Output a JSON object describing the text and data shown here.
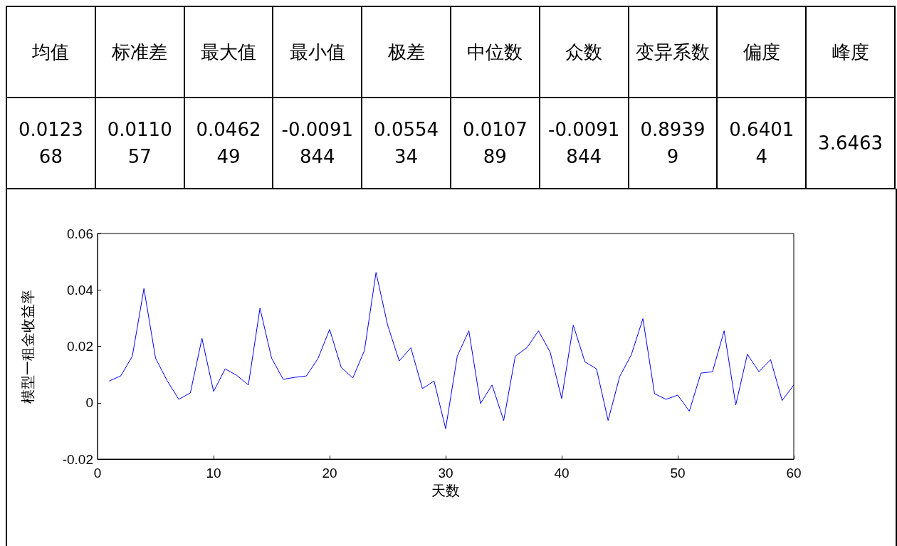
{
  "chart_data": [
    {
      "type": "other",
      "annotations": [
        "均值",
        "标准差",
        "最大值",
        "最小值",
        "极差",
        "中位数",
        "众数",
        "变异系数",
        "偏度",
        "峰度",
        "0.012368",
        "0.011057",
        "0.046249",
        "-0.0091844",
        "0.055434",
        "0.010789",
        "-0.0091844",
        "0.89399",
        "0.64014",
        "3.6463"
      ]
    },
    {
      "type": "line",
      "xlabel": "天数",
      "ylabel": "模型一租金收益率",
      "x": [
        1,
        2,
        3,
        4,
        5,
        6,
        7,
        8,
        9,
        10,
        11,
        12,
        13,
        14,
        15,
        16,
        17,
        18,
        19,
        20,
        21,
        22,
        23,
        24,
        25,
        26,
        27,
        28,
        29,
        30,
        31,
        32,
        33,
        34,
        35,
        36,
        37,
        38,
        39,
        40,
        41,
        42,
        43,
        44,
        45,
        46,
        47,
        48,
        49,
        50,
        51,
        52,
        53,
        54,
        55,
        56,
        57,
        58,
        59,
        60
      ],
      "series": [
        {
          "color": "#0000ff",
          "values": [
            0.0077,
            0.0095,
            0.0165,
            0.0405,
            0.0158,
            0.0078,
            0.0012,
            0.0035,
            0.0228,
            0.004,
            0.012,
            0.0097,
            0.0063,
            0.0335,
            0.0158,
            0.0083,
            0.009,
            0.0095,
            0.0157,
            0.026,
            0.0125,
            0.0088,
            0.0185,
            0.0462,
            0.0275,
            0.0148,
            0.0195,
            0.005,
            0.0077,
            -0.0092,
            0.0165,
            0.0255,
            -0.0003,
            0.0063,
            -0.0063,
            0.0165,
            0.0195,
            0.0255,
            0.018,
            0.0015,
            0.0275,
            0.0145,
            0.012,
            -0.0063,
            0.0093,
            0.017,
            0.0298,
            0.0032,
            0.0012,
            0.0027,
            -0.003,
            0.0105,
            0.011,
            0.0255,
            -0.0008,
            0.0172,
            0.011,
            0.0153,
            0.0008,
            0.0063
          ]
        }
      ],
      "xlim": [
        0,
        60
      ],
      "xticks": [
        0,
        10,
        20,
        30,
        40,
        50,
        60
      ],
      "ylim": [
        -0.02,
        0.06
      ],
      "yticks": [
        -0.02,
        0,
        0.02,
        0.04,
        0.06
      ],
      "grid": false,
      "marker": "none",
      "line_style": "solid"
    }
  ]
}
